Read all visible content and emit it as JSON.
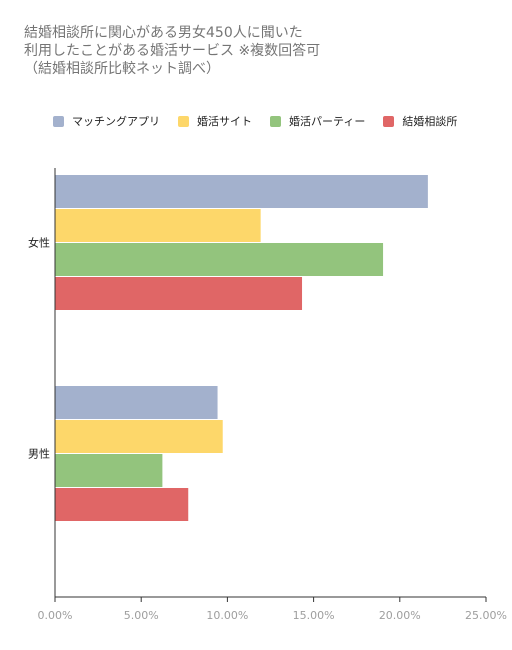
{
  "chart_data": {
    "type": "bar",
    "orientation": "horizontal",
    "title_lines": [
      "結婚相談所に関心がある男女450人に聞いた",
      "利用したことがある婚活サービス ※複数回答可",
      "（結婚相談所比較ネット調べ）"
    ],
    "categories": [
      "女性",
      "男性"
    ],
    "series": [
      {
        "name": "マッチングアプリ",
        "color": "#a3b1cd",
        "values": [
          0.216,
          0.094
        ]
      },
      {
        "name": "婚活サイト",
        "color": "#fdd76a",
        "values": [
          0.119,
          0.097
        ]
      },
      {
        "name": "婚活パーティー",
        "color": "#93c47d",
        "values": [
          0.19,
          0.062
        ]
      },
      {
        "name": "結婚相談所",
        "color": "#e06666",
        "values": [
          0.143,
          0.077
        ]
      }
    ],
    "xlim": [
      0,
      0.25
    ],
    "xticks": [
      0,
      0.05,
      0.1,
      0.15,
      0.2,
      0.25
    ],
    "xtick_labels": [
      "0.00%",
      "5.00%",
      "10.00%",
      "15.00%",
      "20.00%",
      "25.00%"
    ],
    "legend_position": "top-left",
    "grid": false
  }
}
